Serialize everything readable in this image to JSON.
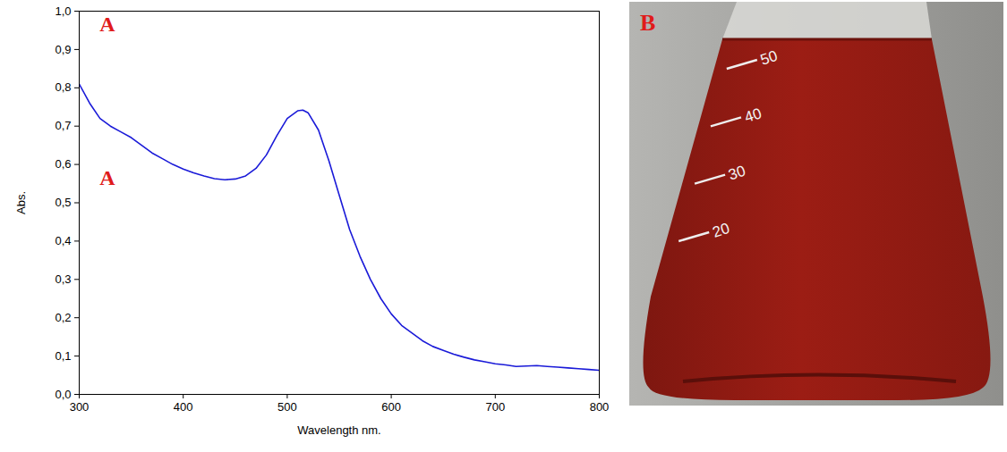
{
  "chart_data": {
    "type": "line",
    "x_label": "Wavelength nm.",
    "y_label": "Abs.",
    "xlim": [
      300,
      800
    ],
    "xticks": [
      300,
      400,
      500,
      600,
      700,
      800
    ],
    "ylim": [
      0,
      1.0
    ],
    "yticks": [
      {
        "value": 0,
        "label": "0,0"
      },
      {
        "value": 0.1,
        "label": "0,1"
      },
      {
        "value": 0.2,
        "label": "0,2"
      },
      {
        "value": 0.3,
        "label": "0,3"
      },
      {
        "value": 0.4,
        "label": "0,4"
      },
      {
        "value": 0.5,
        "label": "0,5"
      },
      {
        "value": 0.6,
        "label": "0,6"
      },
      {
        "value": 0.7,
        "label": "0,7"
      },
      {
        "value": 0.8,
        "label": "0,8"
      },
      {
        "value": 0.9,
        "label": "0,9"
      },
      {
        "value": 1.0,
        "label": "1,0"
      }
    ],
    "grid": false,
    "series": [
      {
        "name": "Abs.",
        "color": "#1a1ad8",
        "line_style": "solid",
        "marker": "none",
        "x": [
          300,
          310,
          320,
          330,
          340,
          350,
          360,
          370,
          380,
          390,
          400,
          410,
          420,
          430,
          440,
          450,
          460,
          470,
          480,
          490,
          500,
          510,
          515,
          520,
          530,
          540,
          550,
          560,
          570,
          580,
          590,
          600,
          610,
          620,
          630,
          640,
          650,
          660,
          670,
          680,
          690,
          700,
          710,
          720,
          730,
          740,
          750,
          760,
          770,
          780,
          790,
          800
        ],
        "values": [
          0.81,
          0.76,
          0.72,
          0.7,
          0.685,
          0.67,
          0.65,
          0.63,
          0.615,
          0.6,
          0.588,
          0.578,
          0.57,
          0.563,
          0.56,
          0.562,
          0.57,
          0.59,
          0.625,
          0.675,
          0.72,
          0.74,
          0.742,
          0.735,
          0.69,
          0.61,
          0.52,
          0.43,
          0.36,
          0.3,
          0.25,
          0.21,
          0.18,
          0.16,
          0.14,
          0.125,
          0.115,
          0.105,
          0.097,
          0.09,
          0.085,
          0.08,
          0.077,
          0.073,
          0.074,
          0.075,
          0.073,
          0.071,
          0.069,
          0.067,
          0.065,
          0.063
        ]
      }
    ],
    "annotations": [
      {
        "text": "A",
        "x": 327,
        "y": 0.965,
        "color": "#e01b1b"
      },
      {
        "text": "A",
        "x": 327,
        "y": 0.565,
        "color": "#e01b1b"
      }
    ]
  },
  "photo": {
    "label": "B",
    "label_color": "#e01b1b",
    "liquid_color": "#9c1d14",
    "graduations": [
      50,
      40,
      30,
      20
    ]
  }
}
